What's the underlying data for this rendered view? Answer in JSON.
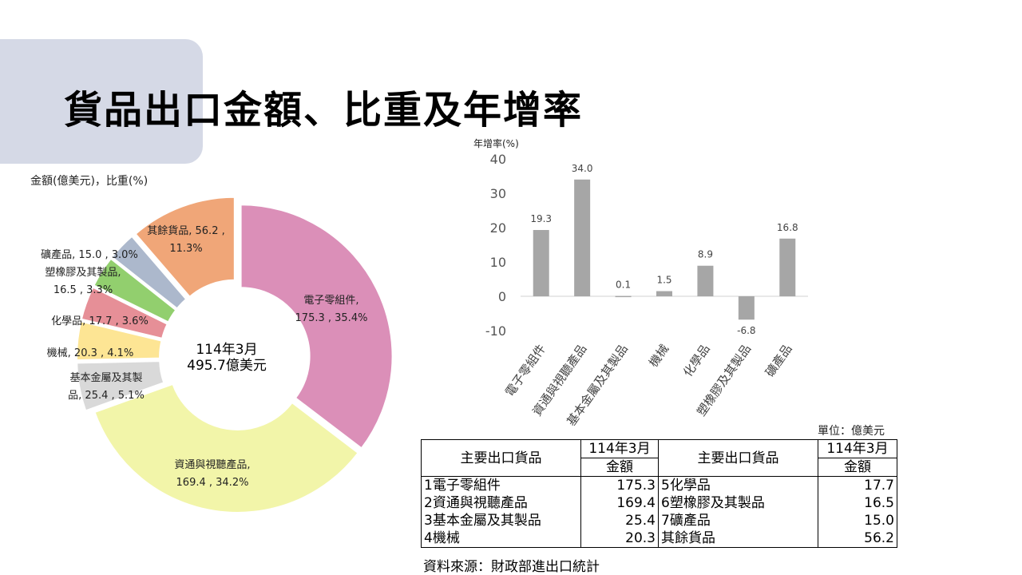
{
  "title": "貨品出口金額、比重及年增率",
  "pie": {
    "unit_label": "金額(億美元)，比重(%)",
    "center_line1": "114年3月",
    "center_line2": "495.7億美元"
  },
  "bar": {
    "ylabel": "年增率(%)"
  },
  "table": {
    "unit": "單位：億美元",
    "header_item": "主要出口貨品",
    "header_period": "114年3月",
    "header_amount": "金額",
    "left_rows": [
      {
        "name": "1電子零組件",
        "value": "175.3"
      },
      {
        "name": "2資通與視聽產品",
        "value": "169.4"
      },
      {
        "name": "3基本金屬及其製品",
        "value": "25.4"
      },
      {
        "name": "4機械",
        "value": "20.3"
      }
    ],
    "right_rows": [
      {
        "name": "5化學品",
        "value": "17.7"
      },
      {
        "name": "6塑橡膠及其製品",
        "value": "16.5"
      },
      {
        "name": "7礦產品",
        "value": "15.0"
      },
      {
        "name": "其餘貨品",
        "value": "56.2"
      }
    ]
  },
  "source": "資料來源：財政部進出口統計",
  "chart_data": [
    {
      "type": "pie",
      "title": "",
      "categories": [
        "電子零組件",
        "資通與視聽產品",
        "基本金屬及其製品",
        "機械",
        "化學品",
        "塑橡膠及其製品",
        "礦產品",
        "其餘貨品"
      ],
      "values": [
        175.3,
        169.4,
        25.4,
        20.3,
        17.7,
        16.5,
        15.0,
        56.2
      ],
      "shares": [
        35.4,
        34.2,
        5.1,
        4.1,
        3.6,
        3.3,
        3.0,
        11.3
      ],
      "colors": [
        "#db8fb8",
        "#f2f5a9",
        "#d9d9d9",
        "#fde594",
        "#e68f97",
        "#92cf6e",
        "#acb8cc",
        "#f0a678"
      ],
      "slice_labels": [
        [
          "電子零組件,",
          "175.3 , 35.4%"
        ],
        [
          "資通與視聽產品,",
          "169.4 , 34.2%"
        ],
        [
          "基本金屬及其製",
          "品, 25.4 , 5.1%"
        ],
        [
          "機械, 20.3 , 4.1%"
        ],
        [
          "化學品, 17.7 , 3.6%"
        ],
        [
          "塑橡膠及其製品,",
          "16.5 , 3.3%"
        ],
        [
          "礦產品, 15.0 , 3.0%"
        ],
        [
          "其餘貨品, 56.2 ,",
          "11.3%"
        ]
      ],
      "donut": true
    },
    {
      "type": "bar",
      "title": "",
      "ylabel": "年增率(%)",
      "categories": [
        "電子零組件",
        "資通與視聽產品",
        "基本金屬及其製品",
        "機械",
        "化學品",
        "塑橡膠及其製品",
        "礦產品"
      ],
      "values": [
        19.3,
        34.0,
        0.1,
        1.5,
        8.9,
        -6.8,
        16.8
      ],
      "ylim": [
        -10,
        40
      ],
      "yticks": [
        -10,
        0,
        10,
        20,
        30,
        40
      ],
      "grid": false,
      "bar_color": "#a6a6a6"
    }
  ]
}
